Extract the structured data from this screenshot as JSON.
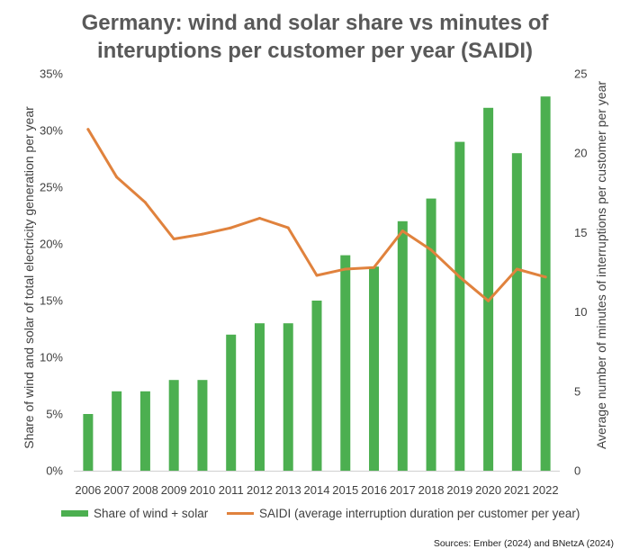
{
  "chart_data": {
    "type": "bar+line",
    "title_lines": [
      "Germany: wind and solar share vs minutes of",
      "interuptions per customer per year (SAIDI)"
    ],
    "categories": [
      "2006",
      "2007",
      "2008",
      "2009",
      "2010",
      "2011",
      "2012",
      "2013",
      "2014",
      "2015",
      "2016",
      "2017",
      "2018",
      "2019",
      "2020",
      "2021",
      "2022"
    ],
    "series": [
      {
        "name": "Share of wind + solar",
        "type": "bar",
        "axis": "left",
        "color": "#4CAF50",
        "values": [
          5,
          7,
          7,
          8,
          8,
          12,
          13,
          13,
          15,
          19,
          18,
          22,
          24,
          29,
          32,
          28,
          33
        ]
      },
      {
        "name": "SAIDI (average interruption duration per customer per year)",
        "type": "line",
        "axis": "right",
        "color": "#E0823D",
        "values": [
          21.5,
          18.5,
          16.9,
          14.6,
          14.9,
          15.3,
          15.9,
          15.3,
          12.3,
          12.7,
          12.8,
          15.1,
          13.9,
          12.2,
          10.7,
          12.7,
          12.2
        ]
      }
    ],
    "y_left": {
      "label": "Share of wind and solar of total electricity generation per year",
      "min": 0,
      "max": 35,
      "step": 5,
      "tick_labels": [
        "0%",
        "5%",
        "10%",
        "15%",
        "20%",
        "25%",
        "30%",
        "35%"
      ]
    },
    "y_right": {
      "label": "Average number of minutes of interruptions per customer per year",
      "min": 0,
      "max": 25,
      "step": 5,
      "tick_labels": [
        "0",
        "5",
        "10",
        "15",
        "20",
        "25"
      ]
    },
    "grid": false,
    "legend_position": "bottom"
  },
  "source": "Sources: Ember (2024) and BNetzA (2024)"
}
